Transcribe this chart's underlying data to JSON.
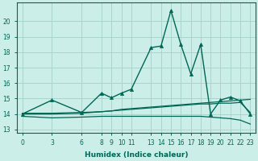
{
  "xlabel": "Humidex (Indice chaleur)",
  "bg_color": "#cceee8",
  "grid_color": "#aad4cc",
  "line_color": "#006655",
  "xlim": [
    -0.5,
    23.5
  ],
  "ylim": [
    12.8,
    21.2
  ],
  "yticks": [
    13,
    14,
    15,
    16,
    17,
    18,
    19,
    20
  ],
  "x_ticks": [
    0,
    3,
    6,
    8,
    9,
    10,
    11,
    13,
    14,
    15,
    16,
    17,
    18,
    19,
    20,
    21,
    22,
    23
  ],
  "lines": [
    {
      "x": [
        0,
        3,
        6,
        8,
        9,
        10,
        11,
        13,
        14,
        15,
        16,
        17,
        18,
        19,
        20,
        21,
        22,
        23
      ],
      "y": [
        14.0,
        14.9,
        14.1,
        15.35,
        15.05,
        15.35,
        15.6,
        18.3,
        18.4,
        20.7,
        18.5,
        16.6,
        18.5,
        14.0,
        14.9,
        15.1,
        14.85,
        14.0
      ],
      "marker": "^",
      "markersize": 3.0,
      "lw": 1.0
    },
    {
      "x": [
        0,
        3,
        6,
        8,
        9,
        10,
        11,
        13,
        14,
        15,
        16,
        17,
        18,
        19,
        20,
        21,
        22,
        23
      ],
      "y": [
        14.05,
        14.05,
        14.1,
        14.15,
        14.2,
        14.3,
        14.35,
        14.45,
        14.5,
        14.55,
        14.6,
        14.65,
        14.7,
        14.75,
        14.8,
        14.85,
        14.9,
        14.95
      ],
      "marker": null,
      "markersize": 0,
      "lw": 0.9
    },
    {
      "x": [
        0,
        3,
        6,
        8,
        9,
        10,
        11,
        13,
        14,
        15,
        16,
        17,
        18,
        19,
        20,
        21,
        22,
        23
      ],
      "y": [
        13.85,
        13.75,
        13.8,
        13.85,
        13.85,
        13.85,
        13.85,
        13.85,
        13.85,
        13.85,
        13.85,
        13.85,
        13.85,
        13.8,
        13.75,
        13.7,
        13.6,
        13.35
      ],
      "marker": null,
      "markersize": 0,
      "lw": 0.9
    },
    {
      "x": [
        0,
        3,
        6,
        8,
        9,
        10,
        11,
        13,
        14,
        15,
        16,
        17,
        18,
        19,
        20,
        21,
        22,
        23
      ],
      "y": [
        14.0,
        14.0,
        14.05,
        14.15,
        14.2,
        14.25,
        14.3,
        14.4,
        14.45,
        14.5,
        14.55,
        14.6,
        14.65,
        14.65,
        14.7,
        14.7,
        14.75,
        14.1
      ],
      "marker": null,
      "markersize": 0,
      "lw": 0.9
    }
  ],
  "tick_fontsize": 5.5,
  "xlabel_fontsize": 6.5
}
